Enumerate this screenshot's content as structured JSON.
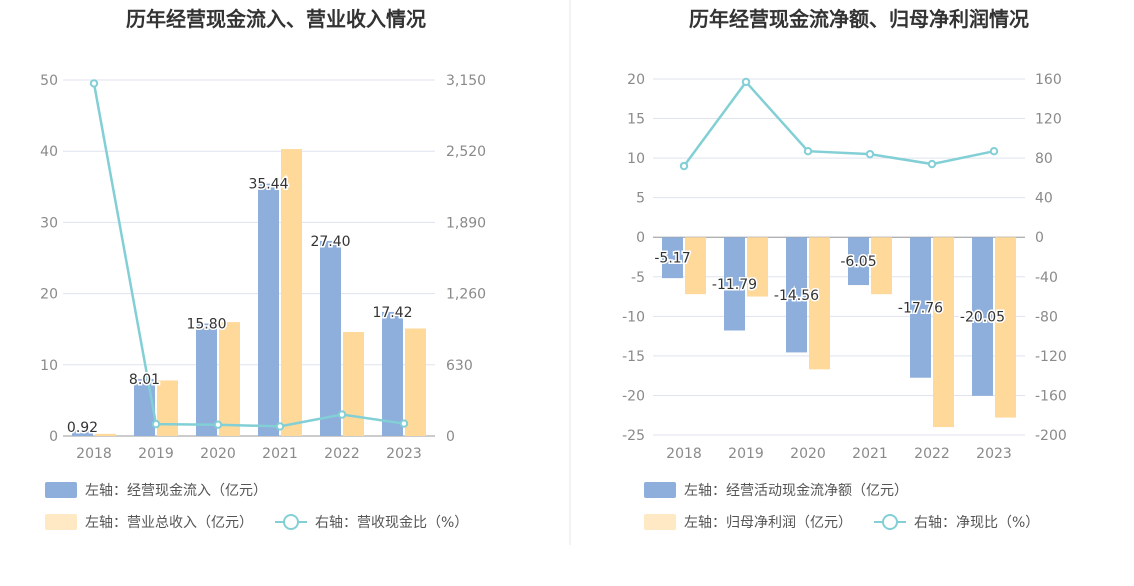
{
  "colors": {
    "bar1": "#8eaedb",
    "bar2": "#ffd99a",
    "bar2_legend": "#ffe9c4",
    "line": "#82cfd6",
    "grid": "#dfe3ee",
    "axis": "#9a9a9a",
    "divider": "#e6e6e6"
  },
  "chart_data": [
    {
      "type": "bar",
      "title": "历年经营现金流入、营业收入情况",
      "categories": [
        "2018",
        "2019",
        "2020",
        "2021",
        "2022",
        "2023"
      ],
      "left_axis": {
        "ticks": [
          "0",
          "10",
          "20",
          "30",
          "40",
          "50"
        ],
        "ylim": [
          0,
          50
        ]
      },
      "right_axis": {
        "ticks": [
          "0",
          "630",
          "1,260",
          "1,890",
          "2,520",
          "3,150"
        ],
        "ylim": [
          0,
          3150
        ]
      },
      "series": [
        {
          "name": "左轴：经营现金流入（亿元）",
          "kind": "bar",
          "axis": "left",
          "values": [
            0.92,
            8.01,
            15.8,
            35.44,
            27.4,
            17.42
          ],
          "labels": [
            "0.92",
            "8.01",
            "15.80",
            "35.44",
            "27.40",
            "17.42"
          ]
        },
        {
          "name": "左轴：营业总收入（亿元）",
          "kind": "bar",
          "axis": "left",
          "values": [
            0.3,
            7.8,
            16.0,
            40.3,
            14.6,
            15.1
          ]
        },
        {
          "name": "右轴：营收现金比（%）",
          "kind": "line",
          "axis": "right",
          "values": [
            3120,
            105,
            100,
            85,
            190,
            110
          ]
        }
      ],
      "legend": [
        {
          "text": "左轴：经营现金流入（亿元）",
          "kind": "bar"
        },
        {
          "text": "左轴：营业总收入（亿元）",
          "kind": "bar-light"
        },
        {
          "text": "右轴：营收现金比（%）",
          "kind": "line"
        }
      ]
    },
    {
      "type": "bar",
      "title": "历年经营现金流净额、归母净利润情况",
      "categories": [
        "2018",
        "2019",
        "2020",
        "2021",
        "2022",
        "2023"
      ],
      "left_axis": {
        "ticks": [
          "-25",
          "-20",
          "-15",
          "-10",
          "-5",
          "0",
          "5",
          "10",
          "15",
          "20"
        ],
        "ylim": [
          -25,
          20
        ]
      },
      "right_axis": {
        "ticks": [
          "-200",
          "-160",
          "-120",
          "-80",
          "-40",
          "0",
          "40",
          "80",
          "120",
          "160"
        ],
        "ylim": [
          -200,
          160
        ]
      },
      "series": [
        {
          "name": "左轴：经营活动现金流净额（亿元）",
          "kind": "bar",
          "axis": "left",
          "values": [
            -5.17,
            -11.79,
            -14.56,
            -6.05,
            -17.76,
            -20.05
          ],
          "labels": [
            "-5.17",
            "-11.79",
            "-14.56",
            "-6.05",
            "-17.76",
            "-20.05"
          ]
        },
        {
          "name": "左轴：归母净利润（亿元）",
          "kind": "bar",
          "axis": "left",
          "values": [
            -7.2,
            -7.5,
            -16.7,
            -7.2,
            -24.0,
            -22.8
          ]
        },
        {
          "name": "右轴：净现比（%）",
          "kind": "line",
          "axis": "right",
          "values": [
            72,
            157,
            87,
            84,
            74,
            87
          ]
        }
      ],
      "legend": [
        {
          "text": "左轴：经营活动现金流净额（亿元）",
          "kind": "bar"
        },
        {
          "text": "左轴：归母净利润（亿元）",
          "kind": "bar-light"
        },
        {
          "text": "右轴：净现比（%）",
          "kind": "line"
        }
      ]
    }
  ]
}
